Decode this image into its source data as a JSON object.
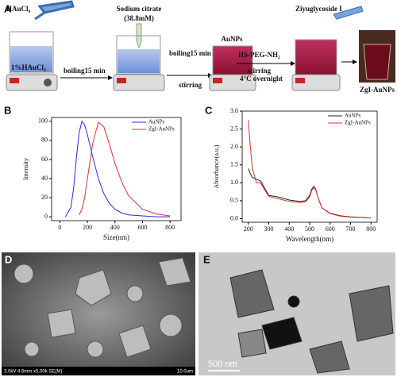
{
  "figure": {
    "panel_a": {
      "label": "A",
      "hauci4": "HAuCl₄",
      "hauci4_solution": "1%HAuCl₄",
      "step1": "boiling15 min",
      "citrate": "Sodium citrate",
      "citrate_conc": "(38.8mM)",
      "step2": "boiling15 min",
      "step2b": "stirring",
      "aunps": "AuNPs",
      "peg": "HS-PEG-NH₂",
      "step3": "stirring",
      "step3b": "4°C overnight",
      "zgi": "Ziyuglycoside I",
      "product": "ZgI-AuNPs"
    },
    "panel_d": {
      "label": "D",
      "info": "3.0kV 4.6mm x5.00k SE(M)",
      "scale": "10.0um"
    },
    "panel_e": {
      "label": "E",
      "scale": "500 nm"
    }
  },
  "chart_data": [
    {
      "type": "line",
      "panel_label": "B",
      "x_label": "Size(nm)",
      "y_label": "Intensity",
      "x": [
        40,
        80,
        100,
        120,
        140,
        160,
        180,
        200,
        240,
        280,
        320,
        360,
        400,
        450,
        500,
        600,
        700,
        800
      ],
      "series": [
        {
          "name": "AuNPs",
          "color": "#2a2ae0",
          "values": [
            0,
            10,
            30,
            62,
            88,
            100,
            96,
            86,
            62,
            40,
            24,
            14,
            8,
            4,
            2,
            1,
            0,
            0
          ]
        },
        {
          "name": "ZgI-AuNPs",
          "color": "#e03030",
          "values": [
            null,
            null,
            null,
            null,
            2,
            8,
            20,
            40,
            78,
            99,
            94,
            76,
            56,
            36,
            22,
            8,
            3,
            1
          ]
        }
      ],
      "xlim": [
        -60,
        880
      ],
      "ylim": [
        -4,
        104
      ],
      "xticks": [
        0,
        200,
        400,
        600,
        800
      ],
      "yticks": [
        0,
        20,
        40,
        60,
        80,
        100
      ],
      "legend": "upper right"
    },
    {
      "type": "line",
      "panel_label": "C",
      "x_label": "Wavelength(nm)",
      "y_label": "Absorbance(a.u.)",
      "x": [
        200,
        210,
        220,
        240,
        260,
        280,
        300,
        350,
        400,
        450,
        480,
        500,
        510,
        520,
        530,
        540,
        560,
        600,
        650,
        700,
        800
      ],
      "series": [
        {
          "name": "AuNPs",
          "color": "#222222",
          "values": [
            1.4,
            1.25,
            1.15,
            1.1,
            1.05,
            0.85,
            0.65,
            0.6,
            0.52,
            0.48,
            0.5,
            0.65,
            0.82,
            0.9,
            0.82,
            0.6,
            0.3,
            0.15,
            0.08,
            0.05,
            0.02
          ]
        },
        {
          "name": "ZgI-AuNPs",
          "color": "#e03030",
          "values": [
            2.75,
            2.0,
            1.4,
            1.0,
            1.0,
            0.8,
            0.62,
            0.55,
            0.48,
            0.45,
            0.47,
            0.6,
            0.78,
            0.87,
            0.8,
            0.6,
            0.3,
            0.14,
            0.07,
            0.04,
            0.02
          ]
        }
      ],
      "xlim": [
        170,
        830
      ],
      "ylim": [
        -0.1,
        3.0
      ],
      "xticks": [
        200,
        300,
        400,
        500,
        600,
        700,
        800
      ],
      "yticks": [
        {
          "value": 0,
          "label": "0.0"
        },
        0.5,
        {
          "value": 1,
          "label": "1.0"
        },
        1.5,
        {
          "value": 2,
          "label": "2.0"
        },
        2.5,
        {
          "value": 3,
          "label": "3.0"
        }
      ],
      "legend": "upper right"
    }
  ]
}
